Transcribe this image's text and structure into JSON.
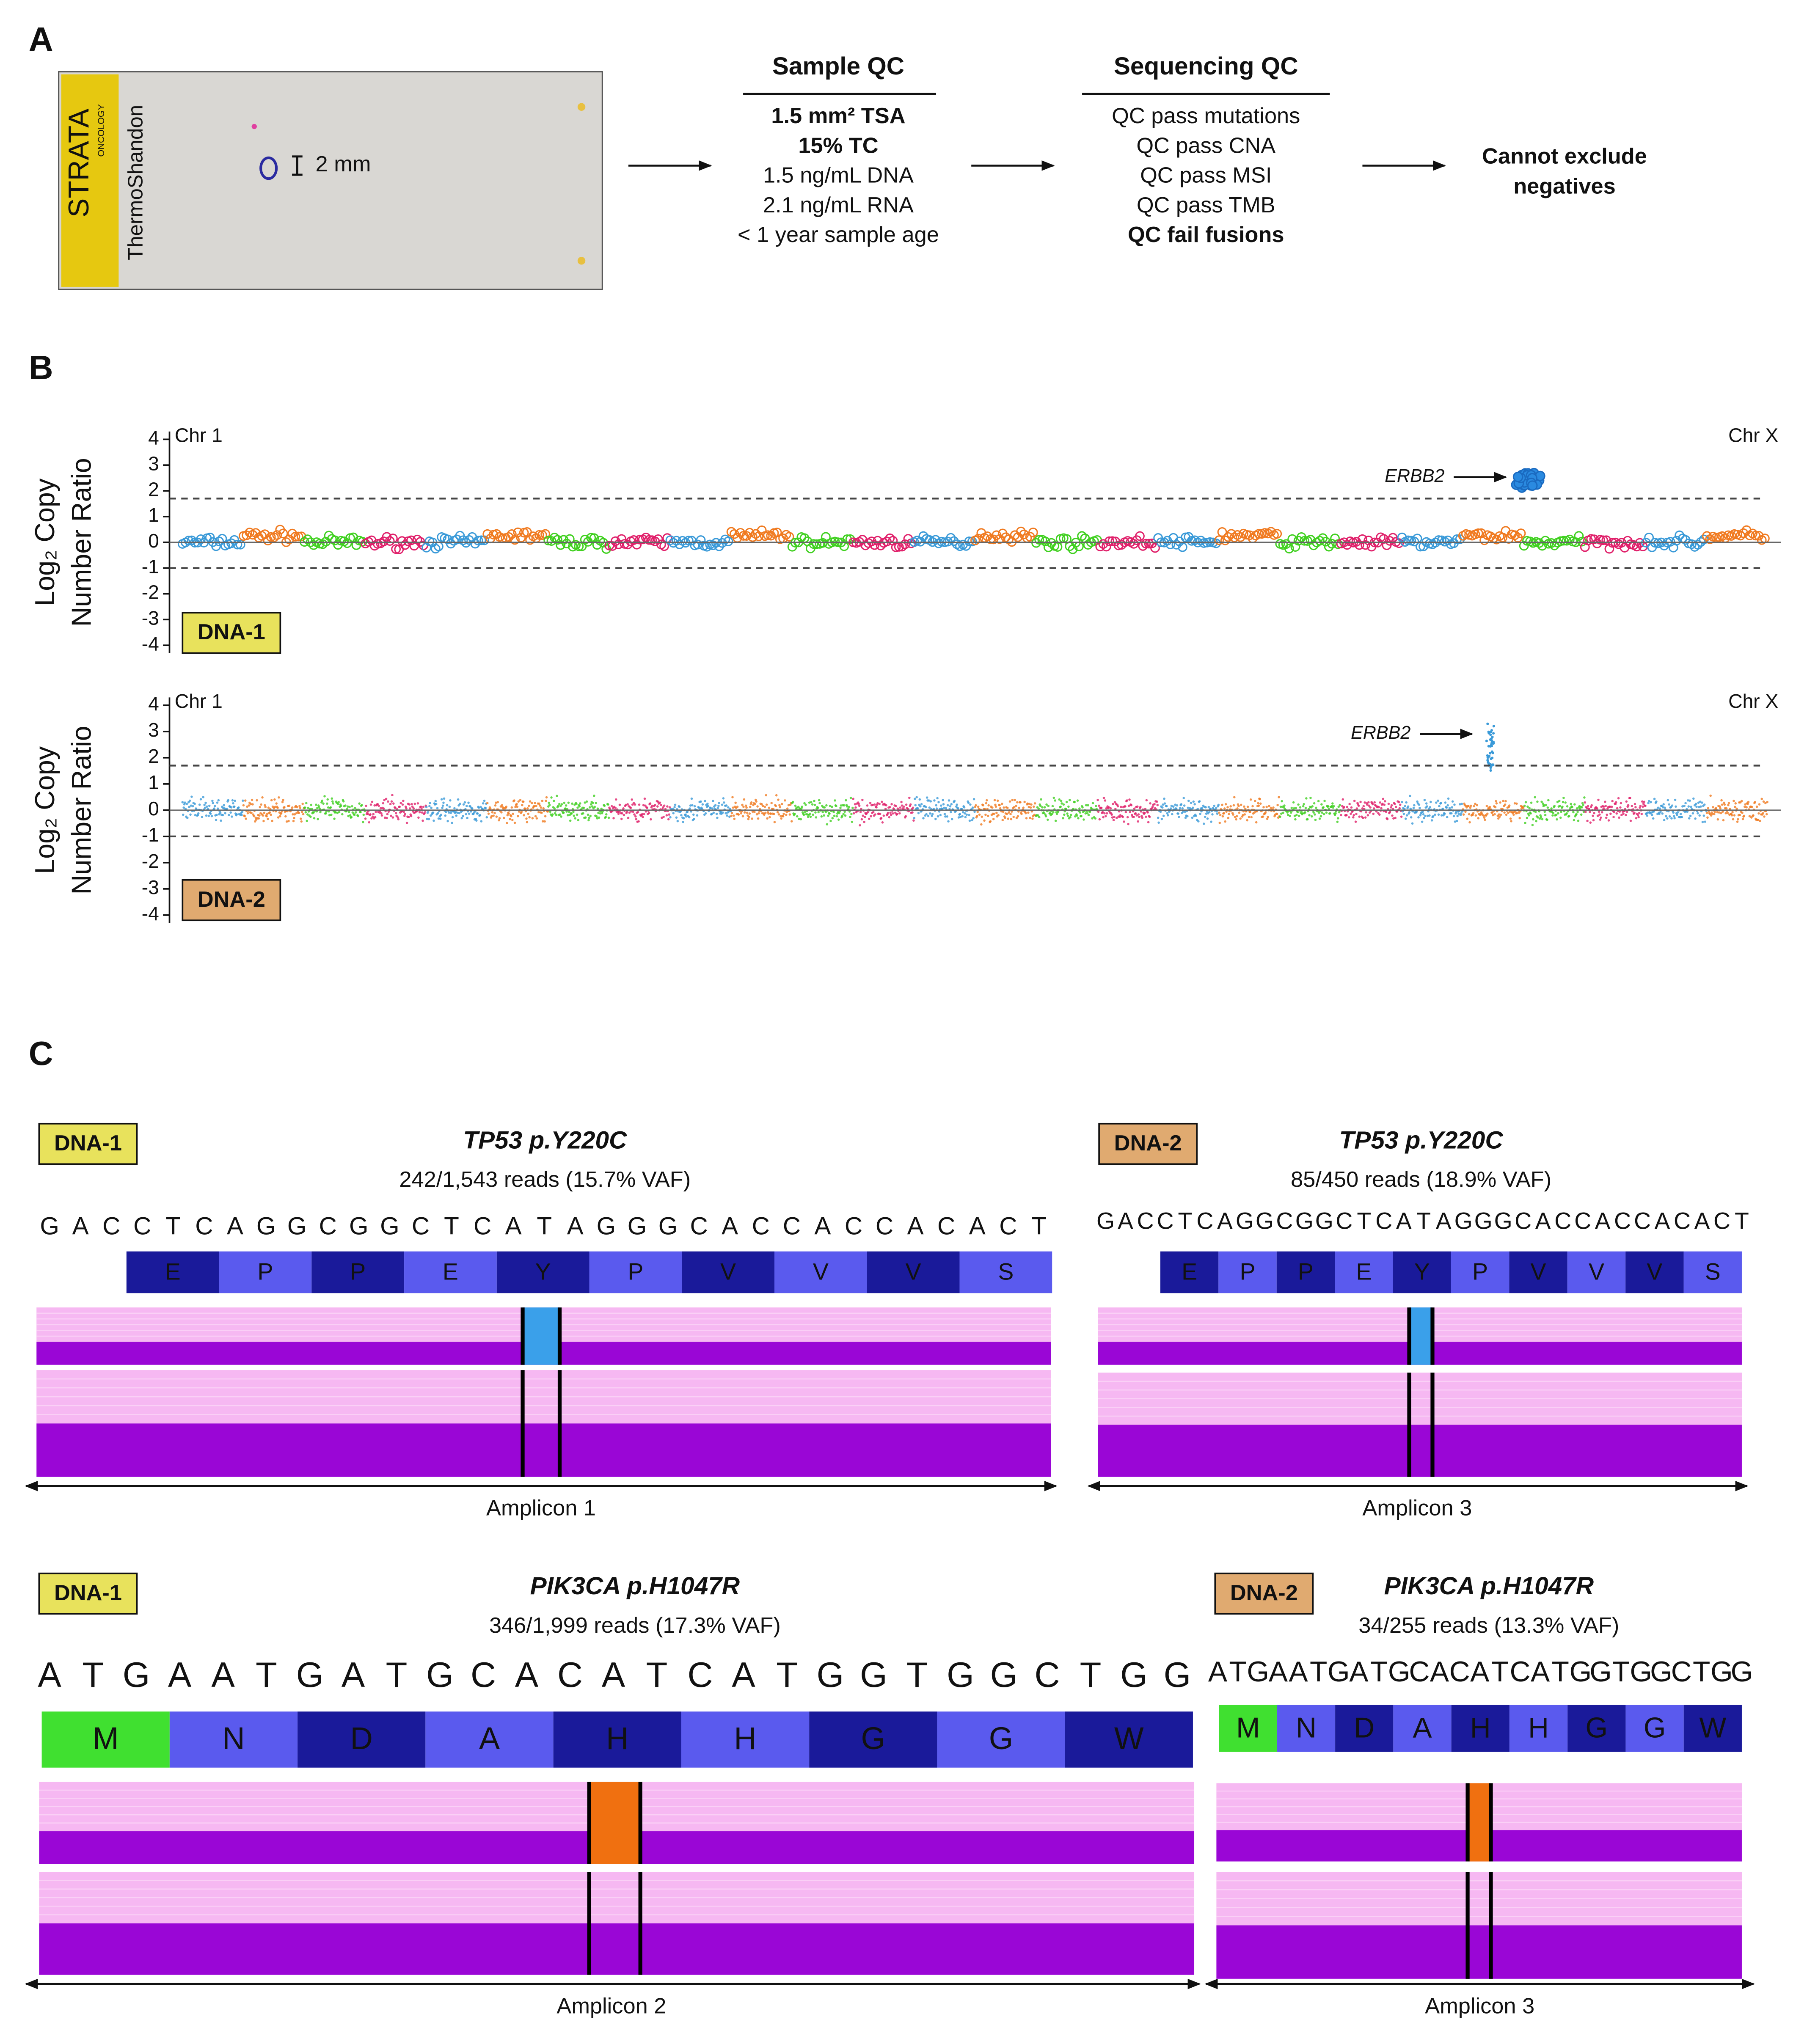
{
  "panel_a": {
    "label": "A",
    "slide": {
      "brand": "STRATA",
      "brand_sub": "ONCOLOGY",
      "maker": "ThermoShandon",
      "scale": "2 mm"
    },
    "sample_qc": {
      "title": "Sample QC",
      "items": [
        {
          "text": "1.5 mm² TSA",
          "color": "#e02020"
        },
        {
          "text": "15% TC",
          "color": "#e02020"
        },
        {
          "text": "1.5 ng/mL DNA",
          "color": "#111111"
        },
        {
          "text": "2.1 ng/mL RNA",
          "color": "#111111"
        },
        {
          "text": "< 1 year sample age",
          "color": "#111111"
        }
      ]
    },
    "sequencing_qc": {
      "title": "Sequencing QC",
      "items": [
        {
          "text": "QC pass mutations",
          "color": "#111111"
        },
        {
          "text": "QC pass CNA",
          "color": "#111111"
        },
        {
          "text": "QC pass MSI",
          "color": "#111111"
        },
        {
          "text": "QC pass TMB",
          "color": "#111111"
        },
        {
          "text": "QC fail fusions",
          "color": "#e02020"
        }
      ]
    },
    "conclusion": {
      "lines": [
        "Cannot exclude",
        "negatives"
      ],
      "color": "#e02020"
    }
  },
  "panel_b": {
    "label": "B",
    "y_label": [
      "Log₂ Copy",
      "Number Ratio"
    ],
    "plots": [
      {
        "sample": "DNA-1",
        "sample_color": "#e8e25c",
        "chr_start": "Chr 1",
        "chr_end": "Chr X",
        "annotation": "ERBB2",
        "ylim": [
          -4,
          4
        ],
        "yticks": [
          4,
          3,
          2,
          1,
          0,
          -1,
          -2,
          -3,
          -4
        ],
        "thresholds": [
          1.7,
          -1
        ]
      },
      {
        "sample": "DNA-2",
        "sample_color": "#e0aa70",
        "chr_start": "Chr 1",
        "chr_end": "Chr X",
        "annotation": "ERBB2",
        "ylim": [
          -4,
          4
        ],
        "yticks": [
          4,
          3,
          2,
          1,
          0,
          -1,
          -2,
          -3,
          -4
        ],
        "thresholds": [
          1.7,
          -1
        ]
      }
    ]
  },
  "panel_c": {
    "label": "C",
    "base_colors": {
      "A": "#2cbf2c",
      "C": "#1a9ad8",
      "G": "#f07a18",
      "T": "#e02020"
    },
    "tracks": [
      {
        "sample": "DNA-1",
        "sample_color": "#e8e25c",
        "gene": "TP53 p.Y220C",
        "reads": "242/1,543 reads (15.7% VAF)",
        "bases": [
          "G",
          "A",
          "C",
          "C",
          "T",
          "C",
          "A",
          "G",
          "G",
          "C",
          "G",
          "G",
          "C",
          "T",
          "C",
          "A",
          "T",
          "A",
          "G",
          "G",
          "G",
          "C",
          "A",
          "C",
          "C",
          "A",
          "C",
          "C",
          "A",
          "C",
          "A",
          "C",
          "T"
        ],
        "amino_acids": [
          "E",
          "P",
          "P",
          "E",
          "Y",
          "P",
          "V",
          "V",
          "V",
          "S"
        ],
        "variant_color": "#3aa0ea",
        "amplicon": "Amplicon 1"
      },
      {
        "sample": "DNA-2",
        "sample_color": "#e0aa70",
        "gene": "TP53 p.Y220C",
        "reads": "85/450 reads (18.9% VAF)",
        "bases": [
          "G",
          "A",
          "C",
          "C",
          "T",
          "C",
          "A",
          "G",
          "G",
          "C",
          "G",
          "G",
          "C",
          "T",
          "C",
          "A",
          "T",
          "A",
          "G",
          "G",
          "G",
          "C",
          "A",
          "C",
          "C",
          "A",
          "C",
          "C",
          "A",
          "C",
          "A",
          "C",
          "T"
        ],
        "amino_acids": [
          "E",
          "P",
          "P",
          "E",
          "Y",
          "P",
          "V",
          "V",
          "V",
          "S"
        ],
        "variant_color": "#3aa0ea",
        "amplicon": "Amplicon 3"
      },
      {
        "sample": "DNA-1",
        "sample_color": "#e8e25c",
        "gene": "PIK3CA p.H1047R",
        "reads": "346/1,999 reads (17.3% VAF)",
        "bases": [
          "A",
          "T",
          "G",
          "A",
          "A",
          "T",
          "G",
          "A",
          "T",
          "G",
          "C",
          "A",
          "C",
          "A",
          "T",
          "C",
          "A",
          "T",
          "G",
          "G",
          "T",
          "G",
          "G",
          "C",
          "T",
          "G",
          "G"
        ],
        "amino_acids": [
          "M",
          "N",
          "D",
          "A",
          "H",
          "H",
          "G",
          "G",
          "W"
        ],
        "variant_color": "#f07010",
        "amplicon": "Amplicon 2"
      },
      {
        "sample": "DNA-2",
        "sample_color": "#e0aa70",
        "gene": "PIK3CA p.H1047R",
        "reads": "34/255 reads (13.3% VAF)",
        "bases": [
          "A",
          "T",
          "G",
          "A",
          "A",
          "T",
          "G",
          "A",
          "T",
          "G",
          "C",
          "A",
          "C",
          "A",
          "T",
          "C",
          "A",
          "T",
          "G",
          "G",
          "T",
          "G",
          "G",
          "C",
          "T",
          "G",
          "G"
        ],
        "amino_acids": [
          "M",
          "N",
          "D",
          "A",
          "H",
          "H",
          "G",
          "G",
          "W"
        ],
        "variant_color": "#f07010",
        "amplicon": "Amplicon 3"
      }
    ]
  }
}
